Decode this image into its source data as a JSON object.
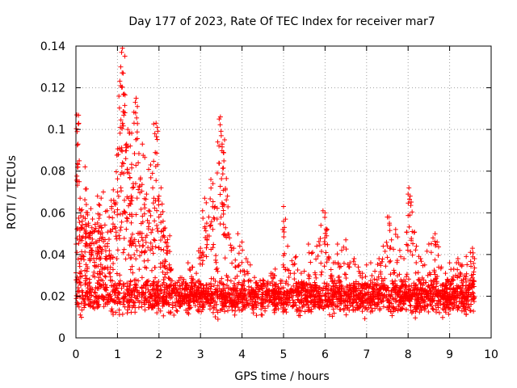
{
  "chart_data": {
    "type": "scatter",
    "title": "Day 177 of 2023, Rate Of TEC Index for receiver mar7",
    "xlabel": "GPS time / hours",
    "ylabel": "ROTI / TECUs",
    "xlim": [
      0,
      10
    ],
    "ylim": [
      0,
      0.14
    ],
    "xticks": [
      "0",
      "1",
      "2",
      "3",
      "4",
      "5",
      "6",
      "7",
      "8",
      "9",
      "10"
    ],
    "yticks": [
      "0",
      "0.02",
      "0.04",
      "0.06",
      "0.08",
      "0.1",
      "0.12",
      "0.14"
    ],
    "grid": true,
    "marker": "+",
    "color": "#ff0000",
    "series": [
      {
        "name": "ROTI",
        "points": [
          [
            0.02,
            0.107
          ],
          [
            0.03,
            0.099
          ],
          [
            0.05,
            0.093
          ],
          [
            0.08,
            0.085
          ],
          [
            0.1,
            0.067
          ],
          [
            0.12,
            0.061
          ],
          [
            0.15,
            0.056
          ],
          [
            0.18,
            0.058
          ],
          [
            0.2,
            0.052
          ],
          [
            0.22,
            0.082
          ],
          [
            0.25,
            0.064
          ],
          [
            0.28,
            0.059
          ],
          [
            0.3,
            0.055
          ],
          [
            0.33,
            0.049
          ],
          [
            0.36,
            0.062
          ],
          [
            0.4,
            0.057
          ],
          [
            0.44,
            0.051
          ],
          [
            0.48,
            0.046
          ],
          [
            0.52,
            0.068
          ],
          [
            0.55,
            0.064
          ],
          [
            0.58,
            0.059
          ],
          [
            0.62,
            0.053
          ],
          [
            0.66,
            0.07
          ],
          [
            0.7,
            0.044
          ],
          [
            0.75,
            0.061
          ],
          [
            0.8,
            0.058
          ],
          [
            0.85,
            0.066
          ],
          [
            0.9,
            0.071
          ],
          [
            0.95,
            0.064
          ],
          [
            1.0,
            0.07
          ],
          [
            1.02,
            0.088
          ],
          [
            1.05,
            0.091
          ],
          [
            1.07,
            0.101
          ],
          [
            1.08,
            0.13
          ],
          [
            1.1,
            0.137
          ],
          [
            1.12,
            0.139
          ],
          [
            1.14,
            0.127
          ],
          [
            1.16,
            0.117
          ],
          [
            1.18,
            0.108
          ],
          [
            1.2,
            0.086
          ],
          [
            1.22,
            0.093
          ],
          [
            1.25,
            0.1
          ],
          [
            1.28,
            0.079
          ],
          [
            1.3,
            0.077
          ],
          [
            1.33,
            0.068
          ],
          [
            1.36,
            0.072
          ],
          [
            1.4,
            0.103
          ],
          [
            1.43,
            0.113
          ],
          [
            1.45,
            0.115
          ],
          [
            1.48,
            0.111
          ],
          [
            1.5,
            0.084
          ],
          [
            1.55,
            0.076
          ],
          [
            1.6,
            0.093
          ],
          [
            1.65,
            0.064
          ],
          [
            1.7,
            0.069
          ],
          [
            1.75,
            0.061
          ],
          [
            1.8,
            0.083
          ],
          [
            1.85,
            0.072
          ],
          [
            1.9,
            0.098
          ],
          [
            1.93,
            0.103
          ],
          [
            1.96,
            0.101
          ],
          [
            2.0,
            0.068
          ],
          [
            2.05,
            0.072
          ],
          [
            2.1,
            0.056
          ],
          [
            2.15,
            0.046
          ],
          [
            2.2,
            0.042
          ],
          [
            2.25,
            0.035
          ],
          [
            2.3,
            0.033
          ],
          [
            2.5,
            0.025
          ],
          [
            2.6,
            0.028
          ],
          [
            2.7,
            0.036
          ],
          [
            2.8,
            0.034
          ],
          [
            2.9,
            0.031
          ],
          [
            3.0,
            0.043
          ],
          [
            3.05,
            0.061
          ],
          [
            3.1,
            0.067
          ],
          [
            3.15,
            0.055
          ],
          [
            3.2,
            0.058
          ],
          [
            3.25,
            0.076
          ],
          [
            3.3,
            0.074
          ],
          [
            3.35,
            0.063
          ],
          [
            3.4,
            0.057
          ],
          [
            3.45,
            0.105
          ],
          [
            3.48,
            0.106
          ],
          [
            3.5,
            0.097
          ],
          [
            3.52,
            0.093
          ],
          [
            3.55,
            0.089
          ],
          [
            3.58,
            0.095
          ],
          [
            3.6,
            0.071
          ],
          [
            3.65,
            0.068
          ],
          [
            3.7,
            0.048
          ],
          [
            3.8,
            0.043
          ],
          [
            3.9,
            0.05
          ],
          [
            4.0,
            0.046
          ],
          [
            4.1,
            0.038
          ],
          [
            4.2,
            0.035
          ],
          [
            4.3,
            0.029
          ],
          [
            4.5,
            0.026
          ],
          [
            4.7,
            0.031
          ],
          [
            4.8,
            0.033
          ],
          [
            5.0,
            0.063
          ],
          [
            5.02,
            0.053
          ],
          [
            5.1,
            0.044
          ],
          [
            5.2,
            0.037
          ],
          [
            5.3,
            0.039
          ],
          [
            5.5,
            0.032
          ],
          [
            5.6,
            0.045
          ],
          [
            5.7,
            0.041
          ],
          [
            5.8,
            0.044
          ],
          [
            5.9,
            0.054
          ],
          [
            5.95,
            0.061
          ],
          [
            6.0,
            0.06
          ],
          [
            6.05,
            0.052
          ],
          [
            6.1,
            0.038
          ],
          [
            6.2,
            0.036
          ],
          [
            6.3,
            0.045
          ],
          [
            6.4,
            0.042
          ],
          [
            6.5,
            0.047
          ],
          [
            6.6,
            0.036
          ],
          [
            6.7,
            0.038
          ],
          [
            6.8,
            0.034
          ],
          [
            6.9,
            0.031
          ],
          [
            7.0,
            0.035
          ],
          [
            7.1,
            0.036
          ],
          [
            7.2,
            0.032
          ],
          [
            7.3,
            0.038
          ],
          [
            7.4,
            0.044
          ],
          [
            7.5,
            0.058
          ],
          [
            7.55,
            0.055
          ],
          [
            7.6,
            0.047
          ],
          [
            7.7,
            0.052
          ],
          [
            7.8,
            0.042
          ],
          [
            7.9,
            0.038
          ],
          [
            8.0,
            0.069
          ],
          [
            8.02,
            0.072
          ],
          [
            8.05,
            0.068
          ],
          [
            8.1,
            0.051
          ],
          [
            8.2,
            0.044
          ],
          [
            8.3,
            0.038
          ],
          [
            8.4,
            0.035
          ],
          [
            8.5,
            0.045
          ],
          [
            8.6,
            0.048
          ],
          [
            8.65,
            0.05
          ],
          [
            8.7,
            0.046
          ],
          [
            8.8,
            0.034
          ],
          [
            8.9,
            0.031
          ],
          [
            9.0,
            0.036
          ],
          [
            9.1,
            0.033
          ],
          [
            9.2,
            0.038
          ],
          [
            9.3,
            0.035
          ],
          [
            9.4,
            0.039
          ],
          [
            9.5,
            0.041
          ],
          [
            9.55,
            0.043
          ],
          [
            9.6,
            0.038
          ]
        ],
        "baseline": {
          "x_start": 0.0,
          "x_end": 9.6,
          "typical_range": [
            0.008,
            0.032
          ],
          "center": 0.019,
          "count": 2400
        }
      }
    ]
  }
}
